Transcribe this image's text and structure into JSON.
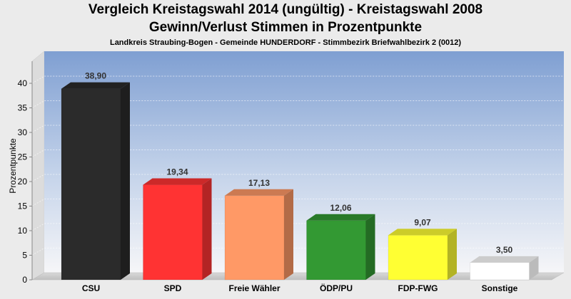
{
  "title_line1": "Vergleich Kreistagswahl 2014 (ungültig) - Kreistagswahl 2008",
  "title_line2": "Gewinn/Verlust Stimmen in Prozentpunkte",
  "subtitle": "Landkreis Straubing-Bogen - Gemeinde HUNDERDORF - Stimmbezirk Briefwahlbezirk 2 (0012)",
  "chart_data": {
    "type": "bar",
    "title": "Vergleich Kreistagswahl 2014 (ungültig) - Kreistagswahl 2008",
    "subtitle": "Gewinn/Verlust Stimmen in Prozentpunkte",
    "ylabel": "Prozentpunkte",
    "xlabel": "",
    "ylim": [
      0,
      45
    ],
    "yticks": [
      0,
      5,
      10,
      15,
      20,
      25,
      30,
      35,
      40
    ],
    "grid": true,
    "categories": [
      "CSU",
      "SPD",
      "Freie Wähler",
      "ÖDP/PU",
      "FDP-FWG",
      "Sonstige"
    ],
    "values": [
      38.9,
      19.34,
      17.13,
      12.06,
      9.07,
      3.5
    ],
    "value_labels": [
      "38,90",
      "19,34",
      "17,13",
      "12,06",
      "9,07",
      "3,50"
    ],
    "colors": [
      "#2b2b2b",
      "#ff3333",
      "#ff9966",
      "#339933",
      "#ffff33",
      "#ffffff"
    ]
  }
}
